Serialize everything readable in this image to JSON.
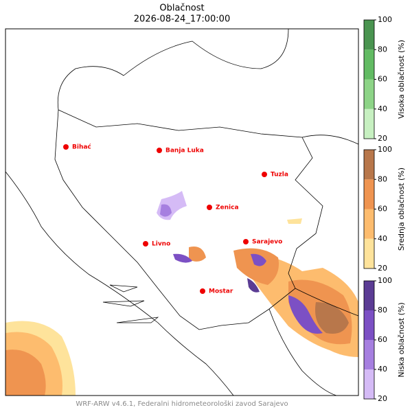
{
  "header": {
    "title": "Oblačnost",
    "subtitle": "2026-08-24_17:00:00"
  },
  "cities": [
    "Bihać",
    "Banja Luka",
    "Tuzla",
    "Zenica",
    "Livno",
    "Sarajevo",
    "Mostar"
  ],
  "colorbars": [
    {
      "label": "Visoka oblačnost (%)",
      "ticks": [
        20,
        40,
        60,
        80,
        100
      ],
      "colors": [
        "#c7f0c1",
        "#8dd487",
        "#62bb63",
        "#4a9450"
      ]
    },
    {
      "label": "Srednja oblačnost (%)",
      "ticks": [
        20,
        40,
        60,
        80,
        100
      ],
      "colors": [
        "#fee39b",
        "#fdbc6e",
        "#ef9450",
        "#b8774b"
      ]
    },
    {
      "label": "Niska oblačnost (%)",
      "ticks": [
        20,
        40,
        60,
        80,
        100
      ],
      "colors": [
        "#d5bbf6",
        "#a67fe0",
        "#7c50c4",
        "#5b3c94"
      ]
    }
  ],
  "footer": "WRF-ARW v4.6.1, Federalni hidrometeorološki zavod Sarajevo"
}
